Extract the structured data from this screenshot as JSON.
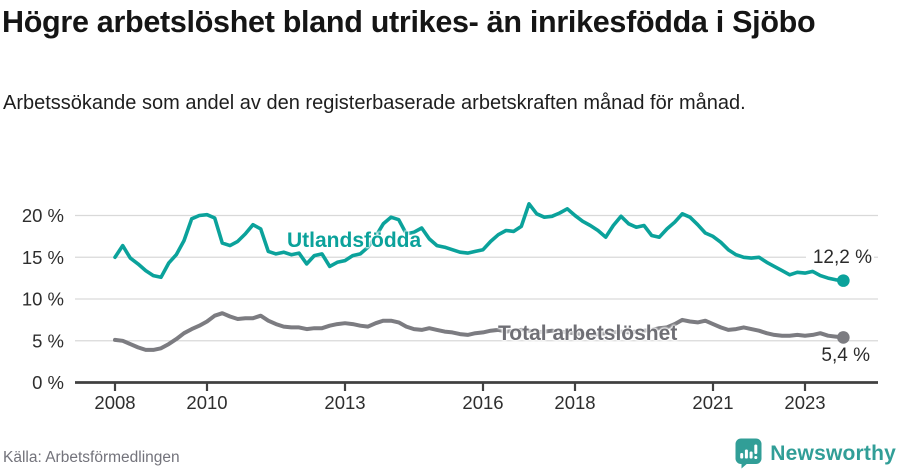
{
  "header": {
    "title": "Högre arbetslöshet bland utrikes- än inrikesfödda i Sjöbo",
    "subtitle": "Arbetssökande som andel av den registerbaserade arbetskraften månad för månad."
  },
  "footer": {
    "source": "Källa: Arbetsförmedlingen",
    "brand": "Newsworthy",
    "brand_icon": "newsworthy-bar-chart-bubble-icon"
  },
  "colors": {
    "teal_series": "#0ba29b",
    "gray_series": "#7c7c81",
    "gray_label": "#6f6f75",
    "grid": "#d9d9d9",
    "axis": "#404040",
    "tick_text": "#2e2e2e",
    "title_text": "#151515",
    "source_text": "#73737b",
    "brand_teal": "#319e97"
  },
  "chart_data": {
    "type": "line",
    "title": "Högre arbetslöshet bland utrikes- än inrikesfödda i Sjöbo",
    "subtitle": "Arbetssökande som andel av den registerbaserade arbetskraften månad för månad.",
    "source": "Källa: Arbetsförmedlingen",
    "grid": "horizontal",
    "legend_position": "inline-labels",
    "xlim": [
      2007.1,
      2024.6
    ],
    "ylim": [
      0,
      22
    ],
    "x_start": 2008.0,
    "x_step_years": 0.16667,
    "x_ticks": [
      {
        "value": 2008,
        "label": "2008"
      },
      {
        "value": 2010,
        "label": "2010"
      },
      {
        "value": 2013,
        "label": "2013"
      },
      {
        "value": 2016,
        "label": "2016"
      },
      {
        "value": 2018,
        "label": "2018"
      },
      {
        "value": 2021,
        "label": "2021"
      },
      {
        "value": 2023,
        "label": "2023"
      }
    ],
    "y_ticks": [
      {
        "value": 0,
        "label": "0 %"
      },
      {
        "value": 5,
        "label": "5 %"
      },
      {
        "value": 10,
        "label": "10 %"
      },
      {
        "value": 15,
        "label": "15 %"
      },
      {
        "value": 20,
        "label": "20 %"
      }
    ],
    "series": [
      {
        "name": "Utlandsfödda",
        "color": "#0ba29b",
        "end_label": "12,2 %",
        "end_value": 12.2,
        "values": [
          15.0,
          16.4,
          14.9,
          14.2,
          13.4,
          12.8,
          12.6,
          14.3,
          15.3,
          17.0,
          19.6,
          20.0,
          20.1,
          19.7,
          16.7,
          16.4,
          16.9,
          17.8,
          18.9,
          18.4,
          15.7,
          15.4,
          15.6,
          15.3,
          15.5,
          14.2,
          15.2,
          15.4,
          13.9,
          14.4,
          14.6,
          15.2,
          15.4,
          16.2,
          17.5,
          19.0,
          19.8,
          19.5,
          17.8,
          18.0,
          18.5,
          17.2,
          16.4,
          16.2,
          15.9,
          15.6,
          15.5,
          15.7,
          15.9,
          16.9,
          17.7,
          18.2,
          18.1,
          18.7,
          21.4,
          20.2,
          19.8,
          19.9,
          20.3,
          20.8,
          20.0,
          19.3,
          18.8,
          18.2,
          17.4,
          18.8,
          19.9,
          19.0,
          18.6,
          18.8,
          17.6,
          17.4,
          18.4,
          19.2,
          20.2,
          19.8,
          18.9,
          17.9,
          17.5,
          16.8,
          15.9,
          15.3,
          15.0,
          14.9,
          15.0,
          14.4,
          13.9,
          13.4,
          12.9,
          13.2,
          13.1,
          13.3,
          12.8,
          12.5,
          12.3,
          12.2
        ]
      },
      {
        "name": "Total arbetslöshet",
        "color": "#7c7c81",
        "end_label": "5,4 %",
        "end_value": 5.4,
        "values": [
          5.1,
          5.0,
          4.6,
          4.2,
          3.9,
          3.9,
          4.1,
          4.6,
          5.2,
          5.9,
          6.4,
          6.8,
          7.3,
          8.0,
          8.3,
          7.9,
          7.6,
          7.7,
          7.7,
          8.0,
          7.4,
          7.0,
          6.7,
          6.6,
          6.6,
          6.4,
          6.5,
          6.5,
          6.8,
          7.0,
          7.1,
          7.0,
          6.8,
          6.7,
          7.1,
          7.4,
          7.4,
          7.2,
          6.7,
          6.4,
          6.3,
          6.5,
          6.3,
          6.1,
          6.0,
          5.8,
          5.7,
          5.9,
          6.0,
          6.2,
          6.3,
          6.1,
          6.2,
          6.3,
          6.2,
          6.0,
          6.1,
          6.2,
          6.1,
          6.0,
          5.9,
          5.8,
          5.7,
          5.8,
          5.9,
          6.0,
          6.1,
          6.0,
          6.1,
          6.2,
          6.3,
          6.5,
          6.6,
          7.0,
          7.5,
          7.3,
          7.2,
          7.4,
          7.0,
          6.6,
          6.3,
          6.4,
          6.6,
          6.4,
          6.2,
          5.9,
          5.7,
          5.6,
          5.6,
          5.7,
          5.6,
          5.7,
          5.9,
          5.6,
          5.5,
          5.4
        ]
      }
    ]
  }
}
